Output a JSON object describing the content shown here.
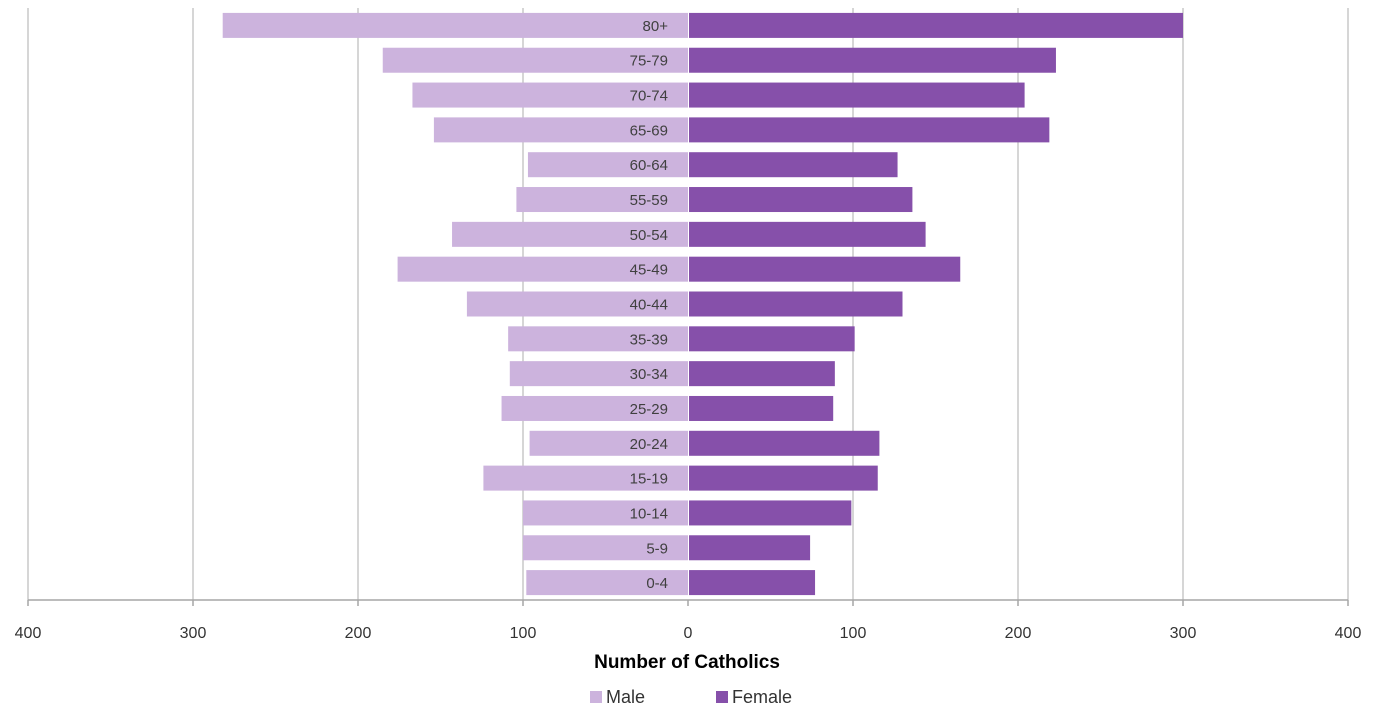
{
  "chart_data": {
    "type": "bar",
    "orientation": "horizontal-population-pyramid",
    "categories": [
      "80+",
      "75-79",
      "70-74",
      "65-69",
      "60-64",
      "55-59",
      "50-54",
      "45-49",
      "40-44",
      "35-39",
      "30-34",
      "25-29",
      "20-24",
      "15-19",
      "10-14",
      "5-9",
      "0-4"
    ],
    "series": [
      {
        "name": "Male",
        "color": "#ccb3dd",
        "values": [
          282,
          185,
          167,
          154,
          97,
          104,
          143,
          176,
          134,
          109,
          108,
          113,
          96,
          124,
          100,
          100,
          98
        ]
      },
      {
        "name": "Female",
        "color": "#8650aa",
        "values": [
          300,
          223,
          204,
          219,
          127,
          136,
          144,
          165,
          130,
          101,
          89,
          88,
          116,
          115,
          99,
          74,
          77
        ]
      }
    ],
    "xlabel": "Number of Catholics",
    "xlim": [
      -400,
      400
    ],
    "xticks": [
      -400,
      -300,
      -200,
      -100,
      0,
      100,
      200,
      300,
      400
    ],
    "xtick_labels": [
      "400",
      "300",
      "200",
      "100",
      "0",
      "100",
      "200",
      "300",
      "400"
    ],
    "grid": "vertical",
    "legend_position": "bottom-center"
  }
}
